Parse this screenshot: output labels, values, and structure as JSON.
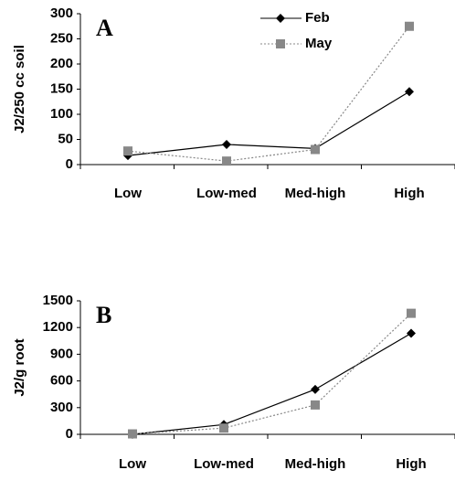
{
  "chart_data": [
    {
      "type": "line",
      "label": "A",
      "ylabel": "J2/250 cc soil",
      "categories": [
        "Low",
        "Low-med",
        "Med-high",
        "High"
      ],
      "series": [
        {
          "name": "Feb",
          "color": "#000000",
          "marker": "diamond",
          "dash": false,
          "values": [
            18,
            40,
            32,
            145
          ]
        },
        {
          "name": "May",
          "color": "#888888",
          "marker": "square",
          "dash": true,
          "values": [
            27,
            7,
            30,
            275
          ]
        }
      ],
      "ylim": [
        0,
        300
      ],
      "yticks": [
        0,
        50,
        100,
        150,
        200,
        250,
        300
      ],
      "legend": "top"
    },
    {
      "type": "line",
      "label": "B",
      "ylabel": "J2/g root",
      "categories": [
        "Low",
        "Low-med",
        "Med-high",
        "High"
      ],
      "series": [
        {
          "color": "#000000",
          "marker": "diamond",
          "dash": false,
          "values": [
            0,
            110,
            505,
            1135
          ]
        },
        {
          "color": "#888888",
          "marker": "square",
          "dash": true,
          "values": [
            5,
            70,
            330,
            1360
          ]
        }
      ],
      "ylim": [
        0,
        1500
      ],
      "yticks": [
        0,
        300,
        600,
        900,
        1200,
        1500
      ]
    }
  ]
}
